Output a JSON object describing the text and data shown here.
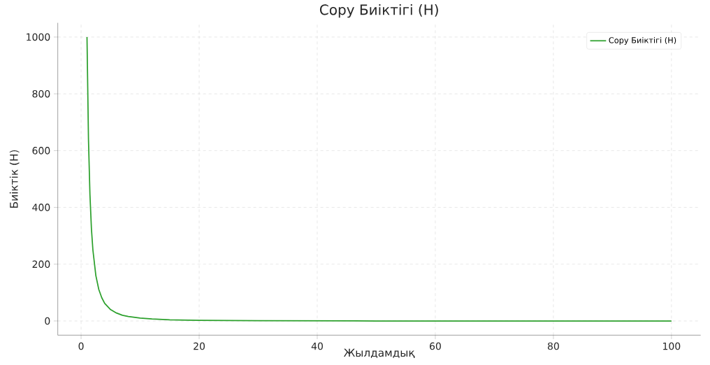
{
  "chart_data": {
    "type": "line",
    "title": "Сору Биіктігі (Н)",
    "xlabel": "Жылдамдық",
    "ylabel": "Биіктік (Н)",
    "x": [
      1,
      1.25,
      1.5,
      1.75,
      2,
      2.5,
      3,
      3.5,
      4,
      5,
      6,
      7,
      8,
      10,
      12,
      15,
      20,
      30,
      50,
      75,
      100
    ],
    "series": [
      {
        "name": "Сору Биіктігі (Н)",
        "color": "#2ca02c",
        "values": [
          1000,
          640,
          445,
          325,
          250,
          160,
          111,
          82,
          62,
          40,
          28,
          20,
          16,
          10,
          7,
          4,
          2.5,
          1,
          0,
          0,
          0
        ]
      }
    ],
    "xlim": [
      -3.95,
      104.95
    ],
    "ylim": [
      -50,
      1050
    ],
    "xticks": [
      0,
      20,
      40,
      60,
      80,
      100
    ],
    "yticks": [
      0,
      200,
      400,
      600,
      800,
      1000
    ],
    "grid": true,
    "legend": "top right",
    "line_style": "solid",
    "marker": "none"
  }
}
